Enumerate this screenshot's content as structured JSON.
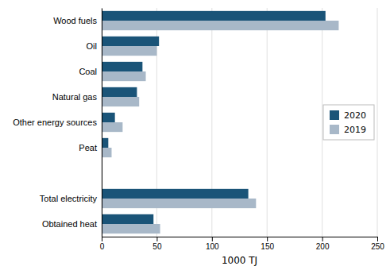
{
  "chart_data": {
    "type": "bar",
    "orientation": "horizontal",
    "categories": [
      "Wood fuels",
      "Oil",
      "Coal",
      "Natural gas",
      "Other energy sources",
      "Peat",
      null,
      "Total electricity",
      "Obtained heat"
    ],
    "series": [
      {
        "name": "2020",
        "color": "#1a5478",
        "values": [
          203,
          52,
          37,
          32,
          12,
          6,
          0,
          133,
          47
        ]
      },
      {
        "name": "2019",
        "color": "#a8b8c8",
        "values": [
          215,
          50,
          40,
          34,
          19,
          9,
          0,
          140,
          53
        ]
      }
    ],
    "xlabel": "1000 TJ",
    "xlim": [
      0,
      250
    ],
    "xticks": [
      0,
      50,
      100,
      150,
      200,
      250
    ],
    "grid": true,
    "legend": "right"
  }
}
